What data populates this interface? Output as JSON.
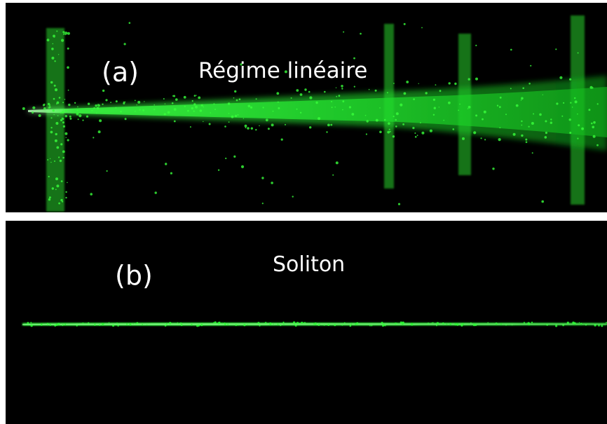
{
  "panels": [
    {
      "label": "(a)",
      "title": "Régime linéaire",
      "beam": "diverging"
    },
    {
      "label": "(b)",
      "title": "Soliton",
      "beam": "narrow"
    }
  ],
  "colors": {
    "background": "#000000",
    "beam": "#2bff3a",
    "text": "#ffffff",
    "separator": "#ffffff"
  }
}
